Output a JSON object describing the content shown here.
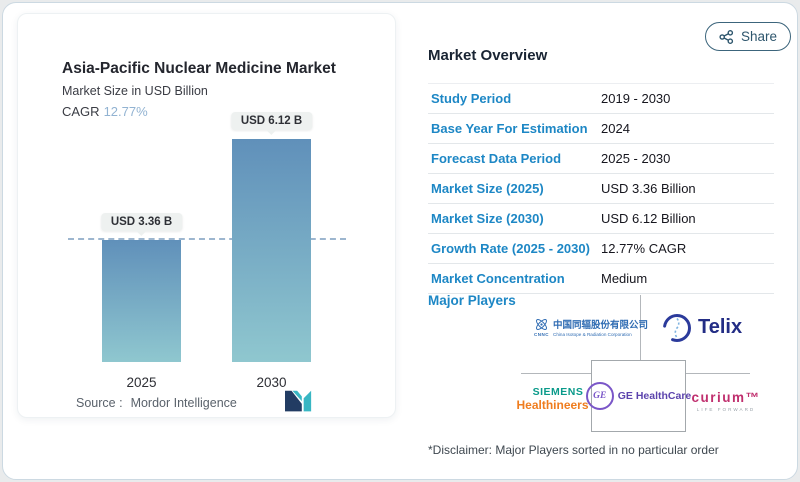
{
  "share_button": {
    "label": "Share"
  },
  "chart_card": {
    "title": "Asia-Pacific Nuclear Medicine Market",
    "subtitle": "Market Size in USD Billion",
    "cagr_label": "CAGR",
    "cagr_value": "12.77%",
    "source_label": "Source :",
    "source_name": "Mordor Intelligence"
  },
  "chart_data": {
    "type": "bar",
    "title": "Asia-Pacific Nuclear Medicine Market",
    "xlabel": "",
    "ylabel": "Market Size in USD Billion",
    "categories": [
      "2025",
      "2030"
    ],
    "values": [
      3.36,
      6.12
    ],
    "value_labels": [
      "USD 3.36 B",
      "USD 6.12 B"
    ],
    "unit": "USD Billion",
    "ylim": [
      0,
      6.5
    ],
    "grid": false,
    "legend": false,
    "reference_line_value": 3.36,
    "bar_color_top": "#6090ba",
    "bar_color_bottom": "#8fc7cf"
  },
  "overview": {
    "title": "Market Overview",
    "rows": [
      {
        "label": "Study Period",
        "value": "2019 - 2030"
      },
      {
        "label": "Base Year For Estimation",
        "value": "2024"
      },
      {
        "label": "Forecast Data Period",
        "value": "2025 - 2030"
      },
      {
        "label": "Market Size (2025)",
        "value": "USD 3.36 Billion"
      },
      {
        "label": "Market Size (2030)",
        "value": "USD 6.12 Billion"
      },
      {
        "label": "Growth Rate (2025 - 2030)",
        "value": "12.77% CAGR"
      },
      {
        "label": "Market Concentration",
        "value": "Medium"
      }
    ],
    "label_color": "#1d87c5"
  },
  "players": {
    "heading": "Major Players",
    "disclaimer": "*Disclaimer: Major Players sorted in no particular order",
    "china_isotope": {
      "abbr": "CNNC",
      "name_cn": "中国同辐股份有限公司",
      "name_en": "China Isotope & Radiation Corporation"
    },
    "telix": {
      "name": "Telix"
    },
    "siemens": {
      "line1": "SIEMENS",
      "line2": "Healthineers"
    },
    "ge": {
      "monogram": "GE",
      "name": "GE HealthCare"
    },
    "curium": {
      "name": "curium™",
      "tagline": "LIFE FORWARD"
    }
  }
}
